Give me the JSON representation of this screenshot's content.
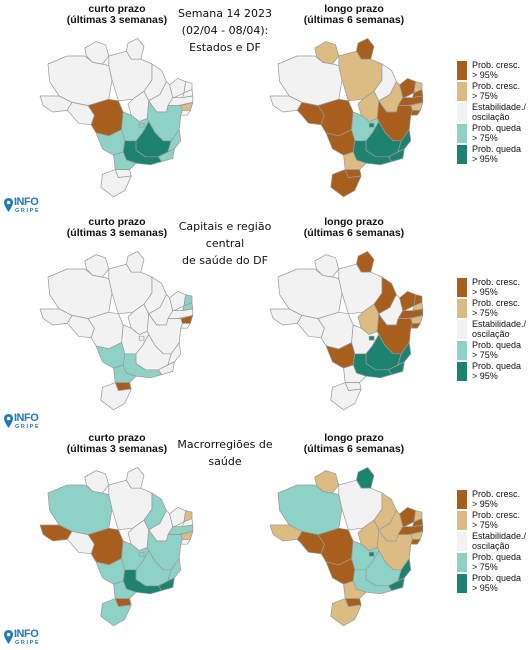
{
  "colors": {
    "cresc95": "#a85f1e",
    "cresc75": "#dcbc83",
    "estab": "#f2f2f2",
    "queda75": "#8ed2c7",
    "queda95": "#1e8270",
    "border": "#9a9a9a",
    "logo": "#1e7ab8"
  },
  "legend": [
    {
      "key": "cresc95",
      "line1": "Prob. cresc.",
      "line2": "> 95%"
    },
    {
      "key": "cresc75",
      "line1": "Prob. cresc.",
      "line2": "> 75%"
    },
    {
      "key": "estab",
      "line1": "Estabilidade./",
      "line2": "oscilação"
    },
    {
      "key": "queda75",
      "line1": "Prob. queda",
      "line2": "> 75%"
    },
    {
      "key": "queda95",
      "line1": "Prob. queda",
      "line2": "> 95%"
    }
  ],
  "logo": {
    "line1": "INFO",
    "line2": "GRIPE",
    "icon": "map-pin-icon"
  },
  "panels": [
    {
      "id": "estados",
      "center_title": {
        "line1": "Semana 14 2023",
        "line2": "(02/04 - 08/04):",
        "line3": "Estados e DF"
      },
      "left_title": {
        "line1": "curto prazo",
        "line2": "(últimas 3 semanas)"
      },
      "right_title": {
        "line1": "longo prazo",
        "line2": "(últimas 6 semanas)"
      },
      "left_map": {
        "RR": "estab",
        "AP": "estab",
        "AM": "estab",
        "PA": "estab",
        "AC": "estab",
        "RO": "estab",
        "MT": "cresc95",
        "TO": "estab",
        "MA": "estab",
        "PI": "estab",
        "CE": "estab",
        "RN": "estab",
        "PB": "estab",
        "PE": "estab",
        "AL": "cresc75",
        "SE": "estab",
        "BA": "queda75",
        "GO": "queda75",
        "DF": "queda75",
        "MS": "queda75",
        "MG": "queda95",
        "ES": "queda75",
        "RJ": "queda75",
        "SP": "queda95",
        "PR": "queda75",
        "SC": "estab",
        "RS": "estab"
      },
      "right_map": {
        "RR": "cresc75",
        "AP": "cresc95",
        "AM": "estab",
        "PA": "cresc75",
        "AC": "estab",
        "RO": "cresc95",
        "MT": "cresc95",
        "TO": "cresc75",
        "MA": "estab",
        "PI": "cresc75",
        "CE": "cresc95",
        "RN": "cresc75",
        "PB": "cresc95",
        "PE": "cresc95",
        "AL": "cresc75",
        "SE": "cresc95",
        "BA": "cresc95",
        "GO": "queda75",
        "DF": "queda95",
        "MS": "cresc95",
        "MG": "queda95",
        "ES": "queda95",
        "RJ": "queda95",
        "SP": "queda95",
        "PR": "cresc75",
        "SC": "cresc95",
        "RS": "cresc95"
      }
    },
    {
      "id": "capitais",
      "center_title": {
        "line1": "Capitais e região central",
        "line2": "de saúde do DF",
        "line3": ""
      },
      "left_title": {
        "line1": "curto prazo",
        "line2": "(últimas 3 semanas)"
      },
      "right_title": {
        "line1": "longo prazo",
        "line2": "(últimas 6 semanas)"
      },
      "left_map": {
        "RR": "estab",
        "AP": "estab",
        "AM": "estab",
        "PA": "estab",
        "AC": "estab",
        "RO": "estab",
        "MT": "estab",
        "TO": "estab",
        "MA": "estab",
        "PI": "estab",
        "CE": "estab",
        "RN": "queda75",
        "PB": "queda75",
        "PE": "estab",
        "AL": "cresc95",
        "SE": "estab",
        "BA": "estab",
        "GO": "estab",
        "DF": "estab",
        "MS": "queda75",
        "MG": "estab",
        "ES": "estab",
        "RJ": "estab",
        "SP": "queda75",
        "PR": "queda75",
        "SC": "cresc95",
        "RS": "estab"
      },
      "right_map": {
        "RR": "estab",
        "AP": "cresc95",
        "AM": "estab",
        "PA": "estab",
        "AC": "estab",
        "RO": "estab",
        "MT": "estab",
        "TO": "cresc75",
        "MA": "cresc95",
        "PI": "estab",
        "CE": "cresc95",
        "RN": "cresc95",
        "PB": "cresc75",
        "PE": "cresc95",
        "AL": "cresc75",
        "SE": "cresc95",
        "BA": "cresc95",
        "GO": "estab",
        "DF": "queda95",
        "MS": "cresc95",
        "MG": "queda95",
        "ES": "queda95",
        "RJ": "queda95",
        "SP": "queda95",
        "PR": "estab",
        "SC": "estab",
        "RS": "estab"
      }
    },
    {
      "id": "macrorregioes",
      "center_title": {
        "line1": "Macrorregiões de saúde",
        "line2": "",
        "line3": ""
      },
      "left_title": {
        "line1": "curto prazo",
        "line2": "(últimas 3 semanas)"
      },
      "right_title": {
        "line1": "longo prazo",
        "line2": "(últimas 6 semanas)"
      },
      "left_map": {
        "RR": "estab",
        "AP": "estab",
        "AM": "queda75",
        "PA": "estab",
        "AC": "cresc95",
        "RO": "estab",
        "MT": "cresc95",
        "TO": "estab",
        "MA": "queda75",
        "PI": "estab",
        "CE": "estab",
        "RN": "cresc75",
        "PB": "estab",
        "PE": "queda75",
        "AL": "cresc75",
        "SE": "estab",
        "BA": "queda75",
        "GO": "queda75",
        "DF": "queda75",
        "MS": "queda75",
        "MG": "queda75",
        "ES": "queda75",
        "RJ": "queda95",
        "SP": "queda95",
        "PR": "queda75",
        "SC": "cresc95",
        "RS": "queda75"
      },
      "right_map": {
        "RR": "cresc75",
        "AP": "queda95",
        "AM": "queda75",
        "PA": "estab",
        "AC": "cresc75",
        "RO": "cresc95",
        "MT": "cresc95",
        "TO": "cresc75",
        "MA": "cresc75",
        "PI": "cresc75",
        "CE": "cresc95",
        "RN": "cresc75",
        "PB": "cresc95",
        "PE": "cresc95",
        "AL": "cresc75",
        "SE": "cresc95",
        "BA": "cresc75",
        "GO": "queda75",
        "DF": "queda95",
        "MS": "cresc95",
        "MG": "queda75",
        "ES": "queda95",
        "RJ": "queda95",
        "SP": "queda75",
        "PR": "cresc75",
        "SC": "cresc95",
        "RS": "cresc75"
      }
    }
  ]
}
